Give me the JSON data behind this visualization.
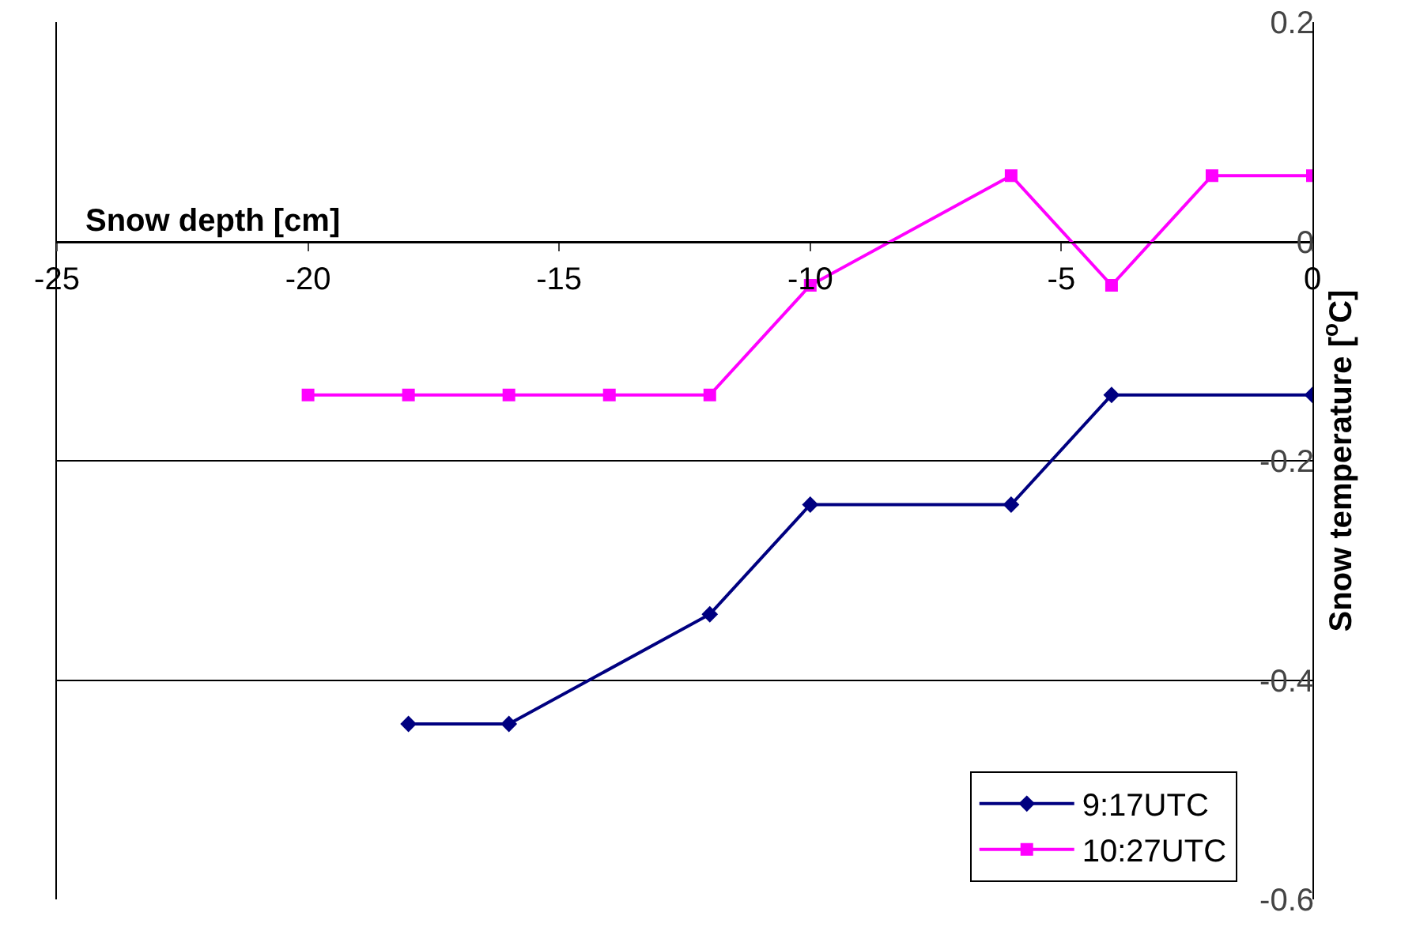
{
  "chart_data": {
    "type": "line",
    "xlabel": "Snow depth [cm]",
    "ylabel": "Snow temperature [$^{o}$C]",
    "xlim": [
      -25,
      0
    ],
    "xticks": [
      -25,
      -20,
      -15,
      -10,
      -5,
      0
    ],
    "ylim": [
      -0.6,
      0.2
    ],
    "yticks": [
      -0.6,
      -0.4,
      -0.2,
      0,
      0.2
    ],
    "grid": "y",
    "legend": "bottom right",
    "series": [
      {
        "name": "9:17UTC",
        "color": "#000080",
        "marker": "diamond",
        "x": [
          -18,
          -16,
          -12,
          -10,
          -6,
          -4,
          0
        ],
        "values": [
          -0.44,
          -0.44,
          -0.34,
          -0.24,
          -0.24,
          -0.14,
          -0.14
        ]
      },
      {
        "name": "10:27UTC",
        "color": "#ff00ff",
        "marker": "square",
        "x": [
          -20,
          -18,
          -16,
          -14,
          -12,
          -10,
          -6,
          -4,
          -2,
          0
        ],
        "values": [
          -0.14,
          -0.14,
          -0.14,
          -0.14,
          -0.14,
          -0.04,
          0.06,
          -0.04,
          0.06,
          0.06
        ]
      }
    ]
  }
}
